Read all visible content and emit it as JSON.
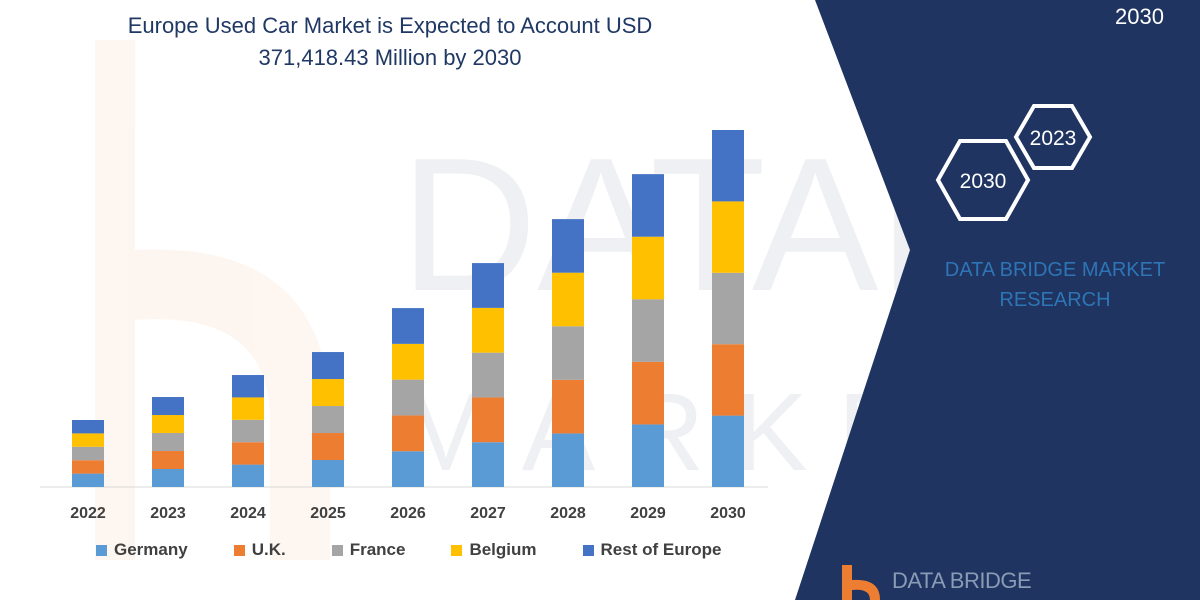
{
  "title": "Europe Used Car Market is Expected to Account USD 371,418.43 Million by 2030",
  "corner_text": "2030",
  "hexagons": [
    "2023",
    "2030"
  ],
  "brand": "DATA BRIDGE MARKET RESEARCH",
  "logo_text": "DATA BRIDGE",
  "colors": {
    "panel": "#1f3461",
    "brand_text": "#2e75b6",
    "logo_orange": "#ed7d31"
  },
  "chart_data": {
    "type": "bar",
    "stacked": true,
    "title": "Europe Used Car Market is Expected to Account USD 371,418.43 Million by 2030",
    "xlabel": "",
    "ylabel": "",
    "categories": [
      "2022",
      "2023",
      "2024",
      "2025",
      "2026",
      "2027",
      "2028",
      "2029",
      "2030"
    ],
    "legend_position": "bottom",
    "grid": false,
    "series": [
      {
        "name": "Germany",
        "color": "#5b9bd5",
        "values": [
          13940,
          18720,
          23300,
          28080,
          37230,
          46590,
          55740,
          65100,
          74284
        ]
      },
      {
        "name": "U.K.",
        "color": "#ed7d31",
        "values": [
          13940,
          18720,
          23300,
          28080,
          37230,
          46590,
          55740,
          65100,
          74284
        ]
      },
      {
        "name": "France",
        "color": "#a5a5a5",
        "values": [
          13940,
          18720,
          23300,
          28080,
          37230,
          46590,
          55740,
          65100,
          74284
        ]
      },
      {
        "name": "Belgium",
        "color": "#ffc000",
        "values": [
          13940,
          18720,
          23300,
          28080,
          37230,
          46590,
          55740,
          65100,
          74284
        ]
      },
      {
        "name": "Rest of Europe",
        "color": "#4472c4",
        "values": [
          13940,
          18720,
          23300,
          28080,
          37230,
          46590,
          55740,
          65100,
          74284
        ]
      }
    ]
  }
}
